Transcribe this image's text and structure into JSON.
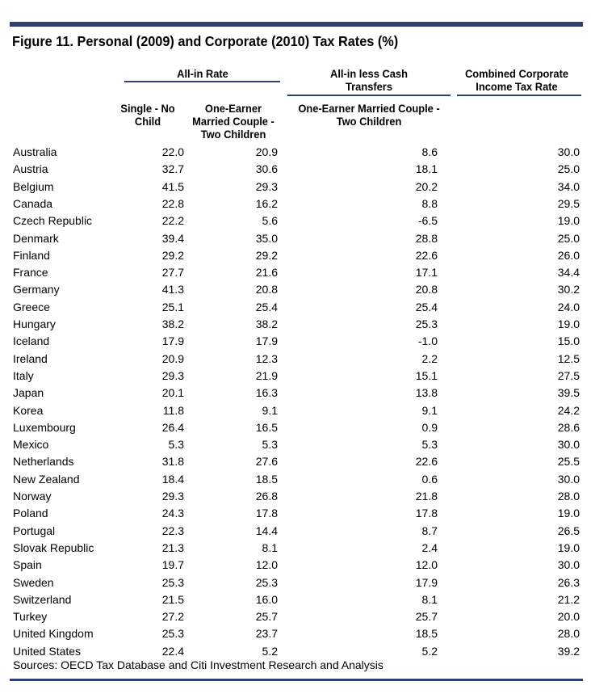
{
  "chart_data": {
    "type": "table",
    "title": "Figure 11. Personal (2009) and Corporate (2010) Tax Rates (%)",
    "group_headers": {
      "all_in_rate": "All-in Rate",
      "all_in_less_cash_line1": "All-in less Cash",
      "all_in_less_cash_line2": "Transfers",
      "corporate_line1": "Combined Corporate",
      "corporate_line2": "Income Tax Rate"
    },
    "column_headers": {
      "single_line1": "Single - No",
      "single_line2": "Child",
      "married_line1": "One-Earner",
      "married_line2": "Married Couple -",
      "married_line3": "Two Children",
      "less_cash_line1": "One-Earner Married Couple -",
      "less_cash_line2": "Two Children"
    },
    "columns": [
      "Single - No Child",
      "One-Earner Married Couple - Two Children",
      "All-in less Cash Transfers: One-Earner Married Couple - Two Children",
      "Combined Corporate Income Tax Rate"
    ],
    "rows": [
      {
        "country": "Australia",
        "values": [
          "22.0",
          "20.9",
          "8.6",
          "30.0"
        ]
      },
      {
        "country": "Austria",
        "values": [
          "32.7",
          "30.6",
          "18.1",
          "25.0"
        ]
      },
      {
        "country": "Belgium",
        "values": [
          "41.5",
          "29.3",
          "20.2",
          "34.0"
        ]
      },
      {
        "country": "Canada",
        "values": [
          "22.8",
          "16.2",
          "8.8",
          "29.5"
        ]
      },
      {
        "country": "Czech Republic",
        "values": [
          "22.2",
          "5.6",
          "-6.5",
          "19.0"
        ]
      },
      {
        "country": "Denmark",
        "values": [
          "39.4",
          "35.0",
          "28.8",
          "25.0"
        ]
      },
      {
        "country": "Finland",
        "values": [
          "29.2",
          "29.2",
          "22.6",
          "26.0"
        ]
      },
      {
        "country": "France",
        "values": [
          "27.7",
          "21.6",
          "17.1",
          "34.4"
        ]
      },
      {
        "country": "Germany",
        "values": [
          "41.3",
          "20.8",
          "20.8",
          "30.2"
        ]
      },
      {
        "country": "Greece",
        "values": [
          "25.1",
          "25.4",
          "25.4",
          "24.0"
        ]
      },
      {
        "country": "Hungary",
        "values": [
          "38.2",
          "38.2",
          "25.3",
          "19.0"
        ]
      },
      {
        "country": "Iceland",
        "values": [
          "17.9",
          "17.9",
          "-1.0",
          "15.0"
        ]
      },
      {
        "country": "Ireland",
        "values": [
          "20.9",
          "12.3",
          "2.2",
          "12.5"
        ]
      },
      {
        "country": "Italy",
        "values": [
          "29.3",
          "21.9",
          "15.1",
          "27.5"
        ]
      },
      {
        "country": "Japan",
        "values": [
          "20.1",
          "16.3",
          "13.8",
          "39.5"
        ]
      },
      {
        "country": "Korea",
        "values": [
          "11.8",
          "9.1",
          "9.1",
          "24.2"
        ]
      },
      {
        "country": "Luxembourg",
        "values": [
          "26.4",
          "16.5",
          "0.9",
          "28.6"
        ]
      },
      {
        "country": "Mexico",
        "values": [
          "5.3",
          "5.3",
          "5.3",
          "30.0"
        ]
      },
      {
        "country": "Netherlands",
        "values": [
          "31.8",
          "27.6",
          "22.6",
          "25.5"
        ]
      },
      {
        "country": "New Zealand",
        "values": [
          "18.4",
          "18.5",
          "0.6",
          "30.0"
        ]
      },
      {
        "country": "Norway",
        "values": [
          "29.3",
          "26.8",
          "21.8",
          "28.0"
        ]
      },
      {
        "country": "Poland",
        "values": [
          "24.3",
          "17.8",
          "17.8",
          "19.0"
        ]
      },
      {
        "country": "Portugal",
        "values": [
          "22.3",
          "14.4",
          "8.7",
          "26.5"
        ]
      },
      {
        "country": "Slovak Republic",
        "values": [
          "21.3",
          "8.1",
          "2.4",
          "19.0"
        ]
      },
      {
        "country": "Spain",
        "values": [
          "19.7",
          "12.0",
          "12.0",
          "30.0"
        ]
      },
      {
        "country": "Sweden",
        "values": [
          "25.3",
          "25.3",
          "17.9",
          "26.3"
        ]
      },
      {
        "country": "Switzerland",
        "values": [
          "21.5",
          "16.0",
          "8.1",
          "21.2"
        ]
      },
      {
        "country": "Turkey",
        "values": [
          "27.2",
          "25.7",
          "25.7",
          "20.0"
        ]
      },
      {
        "country": "United  Kingdom",
        "values": [
          "25.3",
          "23.7",
          "18.5",
          "28.0"
        ]
      },
      {
        "country": "United States",
        "values": [
          "22.4",
          "5.2",
          "5.2",
          "39.2"
        ]
      }
    ],
    "source": "Sources: OECD Tax Database and Citi Investment Research and Analysis"
  },
  "colors": {
    "rule": "#2f3f6e",
    "text": "#000000"
  }
}
